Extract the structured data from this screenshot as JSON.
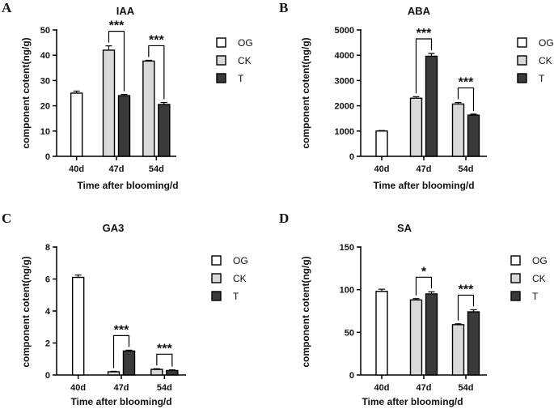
{
  "chart_data": [
    {
      "type": "bar",
      "panel_label": "A",
      "title": "IAA",
      "xlabel": "Time after blooming/d",
      "ylabel": "component cotent(ng/g)",
      "categories": [
        "40d",
        "47d",
        "54d"
      ],
      "yticks": [
        "0",
        "10",
        "20",
        "30",
        "40",
        "50"
      ],
      "ylim": [
        0,
        50
      ],
      "legend": [
        "OG",
        "CK",
        "T"
      ],
      "legend_position": "right",
      "series": [
        {
          "name": "OG",
          "color": "#ffffff",
          "values": [
            25.0,
            null,
            null
          ],
          "errors": [
            0.8,
            null,
            null
          ]
        },
        {
          "name": "CK",
          "color": "#d9d9d9",
          "values": [
            null,
            42.0,
            37.7
          ],
          "errors": [
            null,
            1.7,
            0.3
          ]
        },
        {
          "name": "T",
          "color": "#3a3a3a",
          "values": [
            null,
            24.0,
            20.5
          ],
          "errors": [
            null,
            0.5,
            0.8
          ]
        }
      ],
      "annotations": [
        {
          "category": "47d",
          "text": "***"
        },
        {
          "category": "54d",
          "text": "***"
        }
      ]
    },
    {
      "type": "bar",
      "panel_label": "B",
      "title": "ABA",
      "xlabel": "Time after blooming/d",
      "ylabel": "component cotent(ng/g)",
      "categories": [
        "40d",
        "47d",
        "54d"
      ],
      "yticks": [
        "0",
        "1000",
        "2000",
        "3000",
        "4000",
        "5000"
      ],
      "ylim": [
        0,
        5000
      ],
      "legend": [
        "OG",
        "CK",
        "T"
      ],
      "legend_position": "right",
      "series": [
        {
          "name": "OG",
          "color": "#ffffff",
          "values": [
            1000,
            null,
            null
          ],
          "errors": [
            20,
            null,
            null
          ]
        },
        {
          "name": "CK",
          "color": "#d9d9d9",
          "values": [
            null,
            2300,
            2070
          ],
          "errors": [
            null,
            60,
            60
          ]
        },
        {
          "name": "T",
          "color": "#3a3a3a",
          "values": [
            null,
            3960,
            1630
          ],
          "errors": [
            null,
            110,
            40
          ]
        }
      ],
      "annotations": [
        {
          "category": "47d",
          "text": "***"
        },
        {
          "category": "54d",
          "text": "***"
        }
      ]
    },
    {
      "type": "bar",
      "panel_label": "C",
      "title": "GA3",
      "xlabel": "Time after blooming/d",
      "ylabel": "component cotent(ng/g)",
      "categories": [
        "40d",
        "47d",
        "54d"
      ],
      "yticks": [
        "0",
        "2",
        "4",
        "6",
        "8"
      ],
      "ylim": [
        0,
        8
      ],
      "legend": [
        "OG",
        "CK",
        "T"
      ],
      "legend_position": "right",
      "series": [
        {
          "name": "OG",
          "color": "#ffffff",
          "values": [
            6.1,
            null,
            null
          ],
          "errors": [
            0.15,
            null,
            null
          ]
        },
        {
          "name": "CK",
          "color": "#d9d9d9",
          "values": [
            null,
            0.2,
            0.35
          ],
          "errors": [
            null,
            0.03,
            0.04
          ]
        },
        {
          "name": "T",
          "color": "#3a3a3a",
          "values": [
            null,
            1.5,
            0.28
          ],
          "errors": [
            null,
            0.05,
            0.04
          ]
        }
      ],
      "annotations": [
        {
          "category": "47d",
          "text": "***"
        },
        {
          "category": "54d",
          "text": "***"
        }
      ]
    },
    {
      "type": "bar",
      "panel_label": "D",
      "title": "SA",
      "xlabel": "Time after blooming/d",
      "ylabel": "component cotent(ng/g)",
      "categories": [
        "40d",
        "47d",
        "54d"
      ],
      "yticks": [
        "0",
        "50",
        "100",
        "150"
      ],
      "ylim": [
        0,
        150
      ],
      "legend": [
        "OG",
        "CK",
        "T"
      ],
      "legend_position": "right",
      "series": [
        {
          "name": "OG",
          "color": "#ffffff",
          "values": [
            98,
            null,
            null
          ],
          "errors": [
            2.5,
            null,
            null
          ]
        },
        {
          "name": "CK",
          "color": "#d9d9d9",
          "values": [
            null,
            88,
            59
          ],
          "errors": [
            null,
            1.5,
            1.0
          ]
        },
        {
          "name": "T",
          "color": "#3a3a3a",
          "values": [
            null,
            95,
            74
          ],
          "errors": [
            null,
            2.5,
            2.5
          ]
        }
      ],
      "annotations": [
        {
          "category": "47d",
          "text": "*"
        },
        {
          "category": "54d",
          "text": "***"
        }
      ]
    }
  ]
}
